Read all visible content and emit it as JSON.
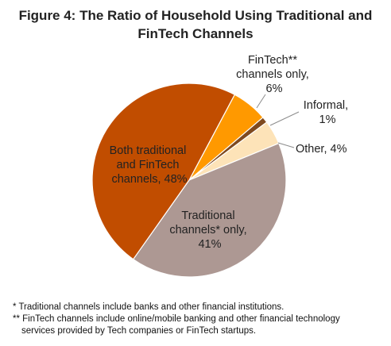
{
  "chart_data": {
    "type": "pie",
    "title_lines": [
      "Figure 4: The Ratio of Household Using Traditional and",
      "FinTech Channels"
    ],
    "slices": [
      {
        "name": "FinTech** channels only",
        "value": 6,
        "color": "#ff9900",
        "label_lines": [
          "FinTech**",
          "channels only,",
          "6%"
        ]
      },
      {
        "name": "Informal",
        "value": 1,
        "color": "#7f4a1f",
        "label_lines": [
          "Informal,",
          "1%"
        ]
      },
      {
        "name": "Other",
        "value": 4,
        "color": "#fde3b8",
        "label_lines": [
          "Other, 4%"
        ]
      },
      {
        "name": "Traditional channels* only",
        "value": 41,
        "color": "#ad9893",
        "label_lines": [
          "Traditional",
          "channels* only,",
          "41%"
        ]
      },
      {
        "name": "Both traditional and FinTech channels",
        "value": 48,
        "color": "#c14d00",
        "label_lines": [
          "Both traditional",
          "and FinTech",
          "channels, 48%"
        ]
      }
    ]
  },
  "footnotes": [
    "* Traditional channels include banks and other financial institutions.",
    "** FinTech channels include online/mobile banking and other financial technology",
    "services provided by Tech companies or FinTech startups."
  ]
}
